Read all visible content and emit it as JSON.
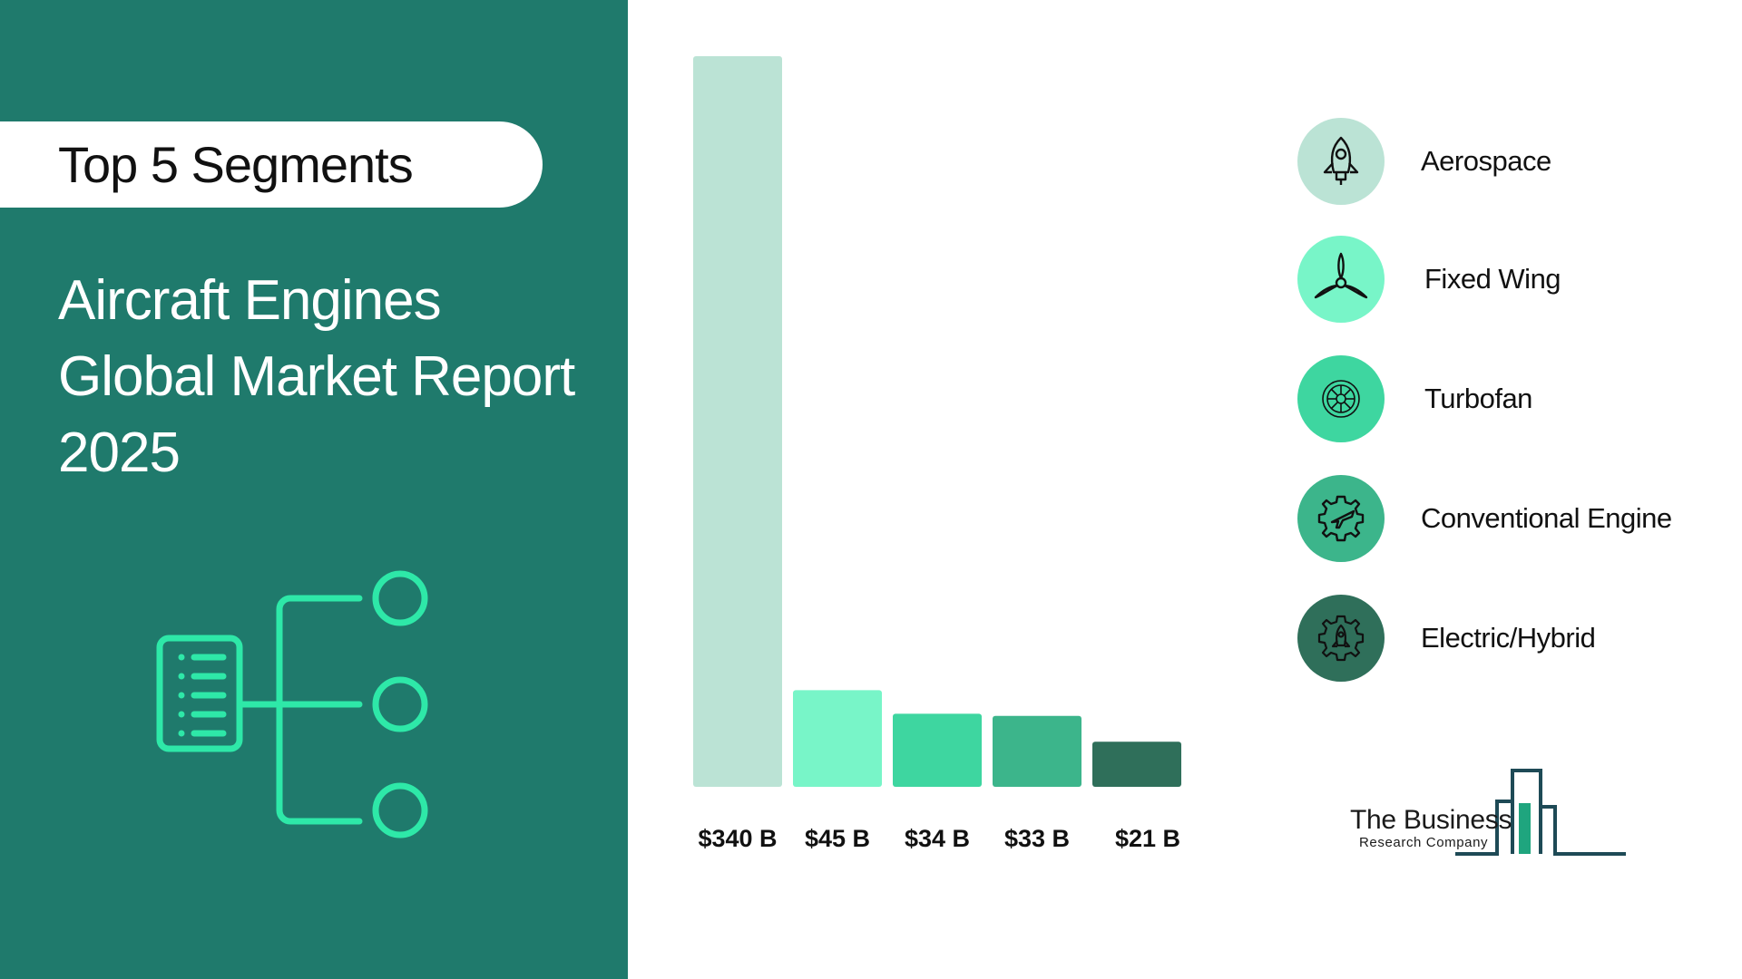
{
  "left_panel": {
    "pill_text": "Top 5 Segments",
    "title_lines": [
      "Aircraft Engines",
      "Global Market Report",
      "2025"
    ]
  },
  "colors": {
    "panel": "#1f7a6c",
    "icon_accent": "#2ee8a8"
  },
  "chart_data": {
    "type": "bar",
    "categories": [
      "Aerospace",
      "Fixed Wing",
      "Turbofan",
      "Conventional Engine",
      "Electric/Hybrid"
    ],
    "values": [
      340,
      45,
      34,
      33,
      21
    ],
    "value_labels": [
      "$340 B",
      "$45 B",
      "$34 B",
      "$33 B",
      "$21 B"
    ],
    "colors": [
      "#bbe3d5",
      "#78f5c8",
      "#3ed6a0",
      "#3cb58b",
      "#2f6f5a"
    ],
    "ylim": [
      0,
      340
    ],
    "grid": false,
    "legend_position": "right"
  },
  "legend": [
    {
      "label": "Aerospace",
      "icon": "rocket-icon",
      "color": "#bbe3d5"
    },
    {
      "label": "Fixed Wing",
      "icon": "propeller-icon",
      "color": "#78f5c8"
    },
    {
      "label": "Turbofan",
      "icon": "turbofan-icon",
      "color": "#3ed6a0"
    },
    {
      "label": "Conventional Engine",
      "icon": "gear-plane-icon",
      "color": "#3cb58b"
    },
    {
      "label": "Electric/Hybrid",
      "icon": "gear-rocket-icon",
      "color": "#2f6f5a"
    }
  ],
  "logo": {
    "line1": "The Business",
    "line2": "Research Company"
  }
}
